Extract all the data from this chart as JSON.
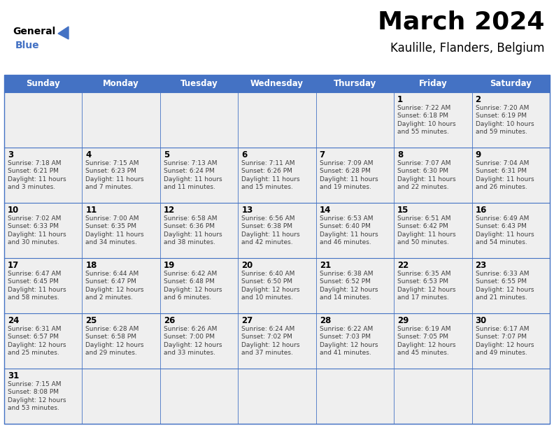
{
  "title": "March 2024",
  "subtitle": "Kaulille, Flanders, Belgium",
  "header_color": "#4472C4",
  "header_text_color": "#FFFFFF",
  "background_color": "#FFFFFF",
  "cell_bg_color": "#EFEFEF",
  "border_color": "#4472C4",
  "text_color": "#3F3F3F",
  "days_of_week": [
    "Sunday",
    "Monday",
    "Tuesday",
    "Wednesday",
    "Thursday",
    "Friday",
    "Saturday"
  ],
  "fig_width": 7.92,
  "fig_height": 6.12,
  "dpi": 100,
  "logo_general_color": "#000000",
  "logo_blue_color": "#4472C4",
  "logo_triangle_color": "#4472C4",
  "title_fontsize": 26,
  "subtitle_fontsize": 12,
  "header_fontsize": 8.5,
  "day_num_fontsize": 8.5,
  "cell_text_fontsize": 6.5,
  "calendar_data": [
    [
      "",
      "",
      "",
      "",
      "",
      "1\nSunrise: 7:22 AM\nSunset: 6:18 PM\nDaylight: 10 hours\nand 55 minutes.",
      "2\nSunrise: 7:20 AM\nSunset: 6:19 PM\nDaylight: 10 hours\nand 59 minutes."
    ],
    [
      "3\nSunrise: 7:18 AM\nSunset: 6:21 PM\nDaylight: 11 hours\nand 3 minutes.",
      "4\nSunrise: 7:15 AM\nSunset: 6:23 PM\nDaylight: 11 hours\nand 7 minutes.",
      "5\nSunrise: 7:13 AM\nSunset: 6:24 PM\nDaylight: 11 hours\nand 11 minutes.",
      "6\nSunrise: 7:11 AM\nSunset: 6:26 PM\nDaylight: 11 hours\nand 15 minutes.",
      "7\nSunrise: 7:09 AM\nSunset: 6:28 PM\nDaylight: 11 hours\nand 19 minutes.",
      "8\nSunrise: 7:07 AM\nSunset: 6:30 PM\nDaylight: 11 hours\nand 22 minutes.",
      "9\nSunrise: 7:04 AM\nSunset: 6:31 PM\nDaylight: 11 hours\nand 26 minutes."
    ],
    [
      "10\nSunrise: 7:02 AM\nSunset: 6:33 PM\nDaylight: 11 hours\nand 30 minutes.",
      "11\nSunrise: 7:00 AM\nSunset: 6:35 PM\nDaylight: 11 hours\nand 34 minutes.",
      "12\nSunrise: 6:58 AM\nSunset: 6:36 PM\nDaylight: 11 hours\nand 38 minutes.",
      "13\nSunrise: 6:56 AM\nSunset: 6:38 PM\nDaylight: 11 hours\nand 42 minutes.",
      "14\nSunrise: 6:53 AM\nSunset: 6:40 PM\nDaylight: 11 hours\nand 46 minutes.",
      "15\nSunrise: 6:51 AM\nSunset: 6:42 PM\nDaylight: 11 hours\nand 50 minutes.",
      "16\nSunrise: 6:49 AM\nSunset: 6:43 PM\nDaylight: 11 hours\nand 54 minutes."
    ],
    [
      "17\nSunrise: 6:47 AM\nSunset: 6:45 PM\nDaylight: 11 hours\nand 58 minutes.",
      "18\nSunrise: 6:44 AM\nSunset: 6:47 PM\nDaylight: 12 hours\nand 2 minutes.",
      "19\nSunrise: 6:42 AM\nSunset: 6:48 PM\nDaylight: 12 hours\nand 6 minutes.",
      "20\nSunrise: 6:40 AM\nSunset: 6:50 PM\nDaylight: 12 hours\nand 10 minutes.",
      "21\nSunrise: 6:38 AM\nSunset: 6:52 PM\nDaylight: 12 hours\nand 14 minutes.",
      "22\nSunrise: 6:35 AM\nSunset: 6:53 PM\nDaylight: 12 hours\nand 17 minutes.",
      "23\nSunrise: 6:33 AM\nSunset: 6:55 PM\nDaylight: 12 hours\nand 21 minutes."
    ],
    [
      "24\nSunrise: 6:31 AM\nSunset: 6:57 PM\nDaylight: 12 hours\nand 25 minutes.",
      "25\nSunrise: 6:28 AM\nSunset: 6:58 PM\nDaylight: 12 hours\nand 29 minutes.",
      "26\nSunrise: 6:26 AM\nSunset: 7:00 PM\nDaylight: 12 hours\nand 33 minutes.",
      "27\nSunrise: 6:24 AM\nSunset: 7:02 PM\nDaylight: 12 hours\nand 37 minutes.",
      "28\nSunrise: 6:22 AM\nSunset: 7:03 PM\nDaylight: 12 hours\nand 41 minutes.",
      "29\nSunrise: 6:19 AM\nSunset: 7:05 PM\nDaylight: 12 hours\nand 45 minutes.",
      "30\nSunrise: 6:17 AM\nSunset: 7:07 PM\nDaylight: 12 hours\nand 49 minutes."
    ],
    [
      "31\nSunrise: 7:15 AM\nSunset: 8:08 PM\nDaylight: 12 hours\nand 53 minutes.",
      "",
      "",
      "",
      "",
      "",
      ""
    ]
  ]
}
